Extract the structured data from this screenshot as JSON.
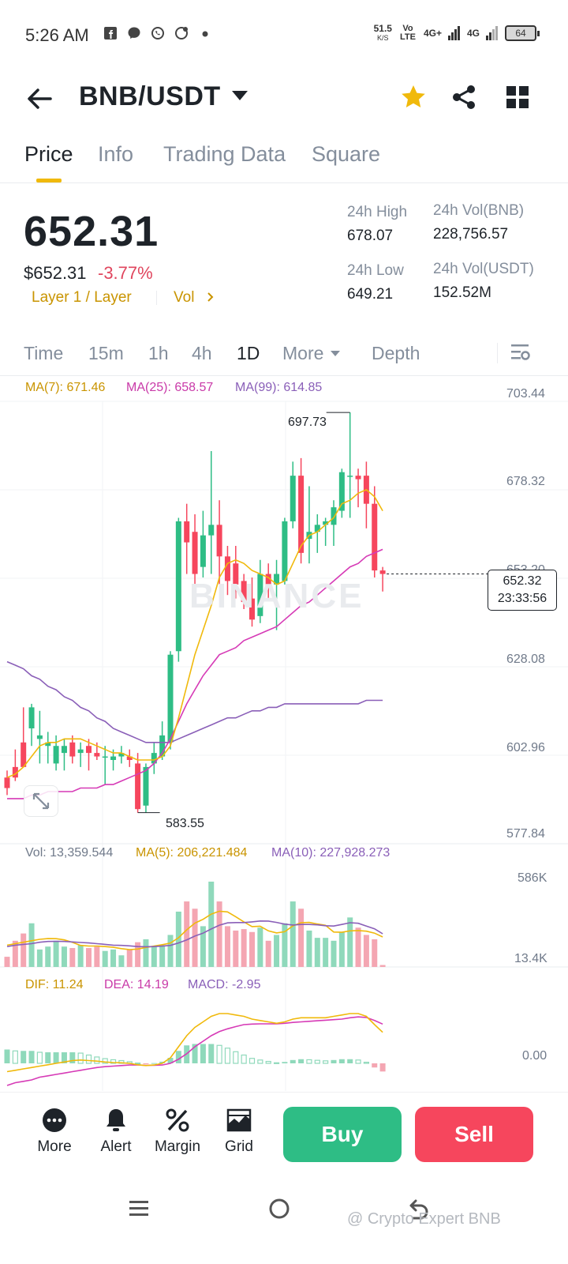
{
  "status_bar": {
    "time": "5:26 AM",
    "speed_value": "51.5",
    "speed_unit": "K/S",
    "net_type_1": "Vo LTE",
    "net_type_2": "4G+",
    "net_type_3": "4G",
    "battery": "64"
  },
  "header": {
    "pair": "BNB/USDT"
  },
  "tabs": [
    "Price",
    "Info",
    "Trading Data",
    "Square"
  ],
  "ticker": {
    "last_price": "652.31",
    "usd_price": "$652.31",
    "change": "-3.77%",
    "tags": "Layer 1 / Layer",
    "vol_link": "Vol",
    "high_label": "24h High",
    "high_value": "678.07",
    "low_label": "24h Low",
    "low_value": "649.21",
    "vol_bnb_label": "24h Vol(BNB)",
    "vol_bnb_value": "228,756.57",
    "vol_usdt_label": "24h Vol(USDT)",
    "vol_usdt_value": "152.52M"
  },
  "intervals": {
    "items": [
      "Time",
      "15m",
      "1h",
      "4h",
      "1D",
      "More",
      "Depth"
    ],
    "active": "1D"
  },
  "main_legend": {
    "ma7": "MA(7): 671.46",
    "ma25": "MA(25): 658.57",
    "ma99": "MA(99): 614.85"
  },
  "vol_legend": {
    "vol": "Vol: 13,359.544",
    "ma5": "MA(5): 206,221.484",
    "ma10": "MA(10): 227,928.273"
  },
  "macd_legend": {
    "dif": "DIF: 11.24",
    "dea": "DEA: 14.19",
    "macd": "MACD: -2.95"
  },
  "price_axis": [
    "703.44",
    "678.32",
    "653.20",
    "628.08",
    "602.96",
    "577.84"
  ],
  "vol_axis": [
    "586K",
    "13.4K"
  ],
  "macd_axis": [
    "0.00"
  ],
  "annotations": {
    "high": "697.73",
    "low": "583.55"
  },
  "current_tag": {
    "price": "652.32",
    "countdown": "23:33:56"
  },
  "watermark": "BINANCE",
  "colors": {
    "up": "#2ebd85",
    "down": "#f6465d",
    "ma7": "#f0b90b",
    "ma25": "#d63ab6",
    "ma99": "#8a5fb8",
    "accent": "#f0b90b"
  },
  "bottom_bar": {
    "more": "More",
    "alert": "Alert",
    "margin": "Margin",
    "grid": "Grid",
    "buy": "Buy",
    "sell": "Sell"
  },
  "credit": "@ Crypto Expert BNB",
  "chart_data": {
    "type": "candlestick",
    "interval": "1D",
    "y_range": [
      577.84,
      703.44
    ],
    "candles": [
      {
        "o": 594,
        "h": 596,
        "l": 589,
        "c": 591
      },
      {
        "o": 597,
        "h": 602,
        "l": 593,
        "c": 594
      },
      {
        "o": 604,
        "h": 614,
        "l": 598,
        "c": 597
      },
      {
        "o": 608,
        "h": 615,
        "l": 603,
        "c": 614
      },
      {
        "o": 605,
        "h": 613,
        "l": 598,
        "c": 606
      },
      {
        "o": 603,
        "h": 607,
        "l": 598,
        "c": 604
      },
      {
        "o": 598,
        "h": 606,
        "l": 596,
        "c": 603
      },
      {
        "o": 601,
        "h": 605,
        "l": 596,
        "c": 603
      },
      {
        "o": 604,
        "h": 606,
        "l": 598,
        "c": 600
      },
      {
        "o": 601,
        "h": 604,
        "l": 597,
        "c": 602
      },
      {
        "o": 603,
        "h": 605,
        "l": 596,
        "c": 601
      },
      {
        "o": 601,
        "h": 604,
        "l": 599,
        "c": 600
      },
      {
        "o": 600,
        "h": 603,
        "l": 592,
        "c": 600
      },
      {
        "o": 599,
        "h": 602,
        "l": 596,
        "c": 600
      },
      {
        "o": 600,
        "h": 603,
        "l": 598,
        "c": 601
      },
      {
        "o": 600,
        "h": 602,
        "l": 597,
        "c": 599
      },
      {
        "o": 598,
        "h": 601,
        "l": 584,
        "c": 585
      },
      {
        "o": 586,
        "h": 598,
        "l": 584,
        "c": 597
      },
      {
        "o": 598,
        "h": 604,
        "l": 595,
        "c": 601
      },
      {
        "o": 600,
        "h": 610,
        "l": 599,
        "c": 606
      },
      {
        "o": 604,
        "h": 630,
        "l": 602,
        "c": 629
      },
      {
        "o": 630,
        "h": 668,
        "l": 627,
        "c": 667
      },
      {
        "o": 667,
        "h": 672,
        "l": 652,
        "c": 661
      },
      {
        "o": 664,
        "h": 669,
        "l": 648,
        "c": 652
      },
      {
        "o": 654,
        "h": 670,
        "l": 651,
        "c": 663
      },
      {
        "o": 663,
        "h": 687,
        "l": 652,
        "c": 666
      },
      {
        "o": 666,
        "h": 673,
        "l": 649,
        "c": 657
      },
      {
        "o": 657,
        "h": 660,
        "l": 646,
        "c": 650
      },
      {
        "o": 655,
        "h": 660,
        "l": 645,
        "c": 649
      },
      {
        "o": 650,
        "h": 652,
        "l": 642,
        "c": 644
      },
      {
        "o": 645,
        "h": 651,
        "l": 637,
        "c": 639
      },
      {
        "o": 640,
        "h": 656,
        "l": 638,
        "c": 652
      },
      {
        "o": 652,
        "h": 655,
        "l": 645,
        "c": 648
      },
      {
        "o": 649,
        "h": 656,
        "l": 636,
        "c": 652
      },
      {
        "o": 650,
        "h": 668,
        "l": 649,
        "c": 667
      },
      {
        "o": 667,
        "h": 684,
        "l": 665,
        "c": 680
      },
      {
        "o": 680,
        "h": 685,
        "l": 655,
        "c": 658
      },
      {
        "o": 662,
        "h": 677,
        "l": 655,
        "c": 664
      },
      {
        "o": 664,
        "h": 669,
        "l": 658,
        "c": 666
      },
      {
        "o": 666,
        "h": 668,
        "l": 660,
        "c": 667
      },
      {
        "o": 666,
        "h": 673,
        "l": 660,
        "c": 671
      },
      {
        "o": 670,
        "h": 682,
        "l": 668,
        "c": 681
      },
      {
        "o": 680,
        "h": 698,
        "l": 668,
        "c": 680
      },
      {
        "o": 680,
        "h": 682,
        "l": 671,
        "c": 679
      },
      {
        "o": 680,
        "h": 684,
        "l": 665,
        "c": 672
      },
      {
        "o": 672,
        "h": 677,
        "l": 651,
        "c": 653
      },
      {
        "o": 653,
        "h": 654,
        "l": 647,
        "c": 652
      }
    ],
    "ma7": [
      594,
      595,
      597,
      600,
      603,
      604,
      604,
      605,
      605,
      605,
      604,
      603,
      602,
      601,
      601,
      600,
      599,
      599,
      599,
      600,
      603,
      611,
      620,
      629,
      636,
      643,
      651,
      655,
      656,
      655,
      653,
      652,
      651,
      649,
      650,
      655,
      660,
      663,
      664,
      666,
      668,
      672,
      673,
      675,
      676,
      674,
      670
    ],
    "ma25": [
      588,
      588,
      588,
      589,
      589,
      590,
      590,
      590,
      590,
      591,
      591,
      591,
      592,
      592,
      593,
      594,
      595,
      596,
      598,
      601,
      605,
      610,
      615,
      619,
      623,
      626,
      629,
      630,
      631,
      633,
      634,
      635,
      636,
      637,
      639,
      641,
      643,
      644,
      646,
      648,
      650,
      652,
      654,
      655,
      657,
      658,
      659
    ],
    "ma99": [
      627,
      626,
      625,
      623,
      622,
      620,
      619,
      617,
      616,
      614,
      613,
      611,
      610,
      608,
      607,
      606,
      605,
      604,
      604,
      604,
      604,
      605,
      606,
      607,
      608,
      609,
      610,
      611,
      611,
      612,
      613,
      613,
      614,
      614,
      615,
      615,
      615,
      615,
      615,
      615,
      615,
      615,
      615,
      615,
      616,
      616,
      616
    ],
    "volume": [
      70,
      180,
      230,
      300,
      120,
      140,
      180,
      140,
      130,
      150,
      130,
      140,
      110,
      120,
      80,
      120,
      170,
      190,
      140,
      150,
      220,
      380,
      450,
      400,
      280,
      586,
      450,
      280,
      250,
      260,
      240,
      270,
      180,
      220,
      300,
      450,
      400,
      250,
      200,
      200,
      180,
      240,
      340,
      270,
      220,
      190,
      13.4
    ],
    "vol_ma5": [
      150,
      160,
      170,
      180,
      190,
      195,
      194,
      186,
      169,
      148,
      144,
      144,
      140,
      135,
      126,
      119,
      123,
      134,
      143,
      153,
      164,
      201,
      255,
      301,
      327,
      363,
      383,
      378,
      345,
      310,
      277,
      280,
      248,
      234,
      242,
      282,
      304,
      306,
      295,
      286,
      240,
      238,
      248,
      250,
      246,
      232,
      206
    ],
    "vol_ma10": [
      140,
      150,
      155,
      160,
      170,
      175,
      176,
      175,
      172,
      168,
      165,
      160,
      155,
      150,
      148,
      145,
      140,
      139,
      140,
      143,
      148,
      165,
      186,
      212,
      232,
      261,
      287,
      303,
      305,
      305,
      310,
      316,
      315,
      306,
      294,
      288,
      292,
      292,
      289,
      283,
      281,
      292,
      304,
      300,
      281,
      262,
      228
    ],
    "macd_dif": [
      -3,
      -2.5,
      -2,
      -1.5,
      -1,
      -0.5,
      0,
      0.5,
      1,
      1.2,
      1,
      0.8,
      0.5,
      0.3,
      0.2,
      0,
      -0.5,
      -0.8,
      -0.6,
      0,
      2,
      6,
      10,
      13,
      15,
      17,
      18,
      18,
      17.5,
      17,
      16,
      15.5,
      15,
      14.5,
      15,
      16,
      16.5,
      16.5,
      16.5,
      16.5,
      17,
      17.5,
      18,
      18,
      17,
      14,
      11.24
    ],
    "macd_dea": [
      -8,
      -7,
      -6.5,
      -6,
      -5,
      -4.5,
      -4,
      -3.5,
      -3,
      -2.5,
      -2,
      -1.5,
      -1.2,
      -1,
      -0.8,
      -0.6,
      -0.6,
      -0.7,
      -0.7,
      -0.6,
      0,
      1.5,
      3.5,
      6,
      8,
      10,
      11.5,
      12.5,
      13.3,
      14,
      14.2,
      14.3,
      14.3,
      14.3,
      14.5,
      14.8,
      15,
      15.2,
      15.4,
      15.6,
      15.8,
      16,
      16.5,
      16.8,
      16.6,
      15.5,
      14.19
    ],
    "macd_hist": [
      5,
      4.5,
      4.5,
      4.5,
      4,
      4,
      4,
      4,
      4,
      3.7,
      3,
      2.3,
      1.7,
      1.3,
      1,
      0.6,
      0.1,
      -0.1,
      0.1,
      0.6,
      2,
      4.5,
      6.5,
      7,
      7,
      7,
      6.5,
      5.5,
      4.2,
      3,
      1.8,
      1.2,
      0.7,
      0.2,
      0.5,
      1.2,
      1.5,
      1.3,
      1.1,
      0.9,
      1.2,
      1.5,
      1.5,
      1.2,
      0.4,
      -1.5,
      -2.95
    ]
  }
}
